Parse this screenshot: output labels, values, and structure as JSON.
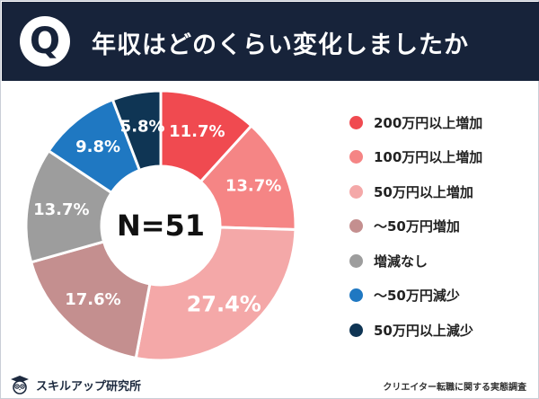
{
  "header": {
    "badge": "Q",
    "title": "年収はどのくらい変化しましたか"
  },
  "footer": {
    "brand": "スキルアップ研究所",
    "source": "クリエイター転職に関する実態調査"
  },
  "chart_data": {
    "type": "pie",
    "donut": true,
    "center_label": "N=51",
    "title": "年収はどのくらい変化しましたか",
    "categories": [
      "200万円以上増加",
      "100万円以上増加",
      "50万円以上増加",
      "〜50万円増加",
      "増減なし",
      "〜50万円減少",
      "50万円以上減少"
    ],
    "values": [
      11.7,
      13.7,
      27.4,
      17.6,
      13.7,
      9.8,
      5.8
    ],
    "labels": [
      "11.7%",
      "13.7%",
      "27.4%",
      "17.6%",
      "13.7%",
      "9.8%",
      "5.8%"
    ],
    "colors": [
      "#f04a50",
      "#f58585",
      "#f4a8a8",
      "#c48f8f",
      "#9d9d9d",
      "#1f78c2",
      "#0f3554"
    ],
    "label_colors": [
      "#ffffff",
      "#ffffff",
      "#ffffff",
      "#ffffff",
      "#ffffff",
      "#ffffff",
      "#ffffff"
    ],
    "legend_position": "right",
    "start_angle_deg": 0,
    "direction": "clockwise"
  }
}
